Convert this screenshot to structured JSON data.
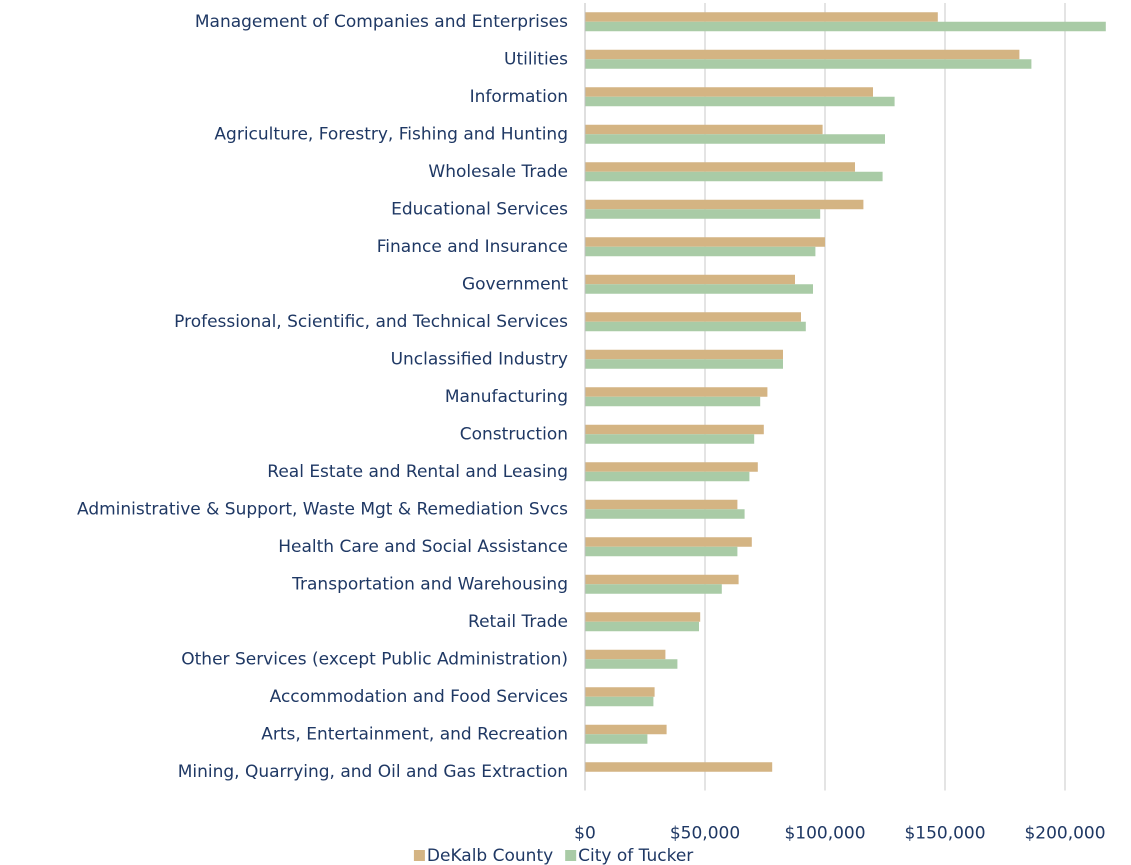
{
  "chart_data": {
    "type": "barh",
    "categories": [
      "Management of Companies and Enterprises",
      "Utilities",
      "Information",
      "Agriculture, Forestry, Fishing and Hunting",
      "Wholesale Trade",
      "Educational Services",
      "Finance and Insurance",
      "Government",
      "Professional, Scientific, and Technical Services",
      "Unclassified Industry",
      "Manufacturing",
      "Construction",
      "Real Estate and Rental and Leasing",
      "Administrative & Support, Waste Mgt & Remediation Svcs",
      "Health Care and Social Assistance",
      "Transportation and Warehousing",
      "Retail Trade",
      "Other Services (except Public Administration)",
      "Accommodation and Food Services",
      "Arts, Entertainment, and Recreation",
      "Mining, Quarrying, and Oil and Gas Extraction"
    ],
    "series": [
      {
        "name": "DeKalb County",
        "color": "#d4b483",
        "values": [
          147000,
          181000,
          120000,
          99000,
          112500,
          116000,
          100000,
          87500,
          90000,
          82500,
          76000,
          74500,
          72000,
          63500,
          69500,
          64000,
          48000,
          33500,
          29000,
          34000,
          78000
        ]
      },
      {
        "name": "City of Tucker",
        "color": "#a9cba6",
        "values": [
          217000,
          186000,
          129000,
          125000,
          124000,
          98000,
          96000,
          95000,
          92000,
          82500,
          73000,
          70500,
          68500,
          66500,
          63500,
          57000,
          47500,
          38500,
          28500,
          26000,
          null
        ]
      }
    ],
    "xlim": [
      0,
      220000
    ],
    "xticks": [
      {
        "value": 0,
        "label": "$0"
      },
      {
        "value": 50000,
        "label": "$50,000"
      },
      {
        "value": 100000,
        "label": "$100,000"
      },
      {
        "value": 150000,
        "label": "$150,000"
      },
      {
        "value": 200000,
        "label": "$200,000"
      }
    ],
    "grid": true,
    "legend": "bottom"
  }
}
